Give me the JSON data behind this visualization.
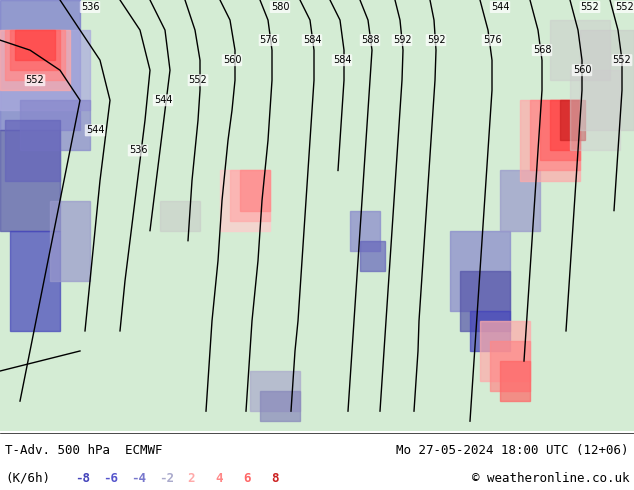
{
  "title_left": "T-Adv. 500 hPa  ECMWF",
  "title_right": "Mo 27-05-2024 18:00 UTC (12+06)",
  "legend_label": "(K/6h)",
  "legend_values": [
    -8,
    -6,
    -4,
    -2,
    2,
    4,
    6,
    8
  ],
  "legend_colors": [
    "#4444cc",
    "#6666dd",
    "#8888ee",
    "#aaaaff",
    "#ffaaaa",
    "#ff6666",
    "#ff3333",
    "#cc0000"
  ],
  "copyright": "© weatheronline.co.uk",
  "bg_color": "#ffffff",
  "bottom_bar_color": "#ffffff",
  "map_bg": "#e8f4e8",
  "fig_width": 6.34,
  "fig_height": 4.9,
  "dpi": 100
}
